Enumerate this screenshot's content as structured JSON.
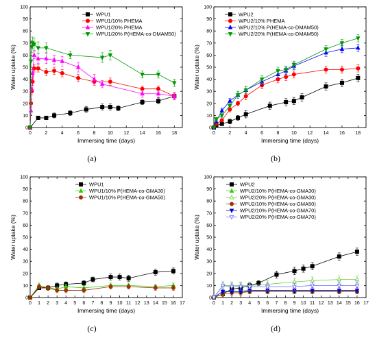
{
  "chart_data": [
    {
      "id": "a",
      "panel_label": "(a)",
      "type": "line",
      "xlabel": "Immersing time (days)",
      "ylabel": "Water uptake (%)",
      "xlim": [
        0,
        19
      ],
      "ylim": [
        0,
        100
      ],
      "xticks": [
        0,
        2,
        4,
        6,
        8,
        10,
        12,
        14,
        16,
        18
      ],
      "yticks": [
        0,
        10,
        20,
        30,
        40,
        50,
        60,
        70,
        80,
        90,
        100
      ],
      "legend_position": "top-right",
      "series": [
        {
          "name": "WPU1",
          "color": "#000000",
          "marker": "square",
          "x": [
            0,
            1,
            2,
            3,
            5,
            7,
            9,
            10,
            11,
            14,
            16,
            18
          ],
          "y": [
            0,
            8,
            8,
            10,
            12,
            15,
            17,
            17,
            16,
            21,
            22,
            26
          ],
          "err": [
            0,
            1.5,
            1.5,
            2,
            2,
            2.5,
            2.5,
            2.5,
            2,
            2,
            2.5,
            2.5
          ]
        },
        {
          "name": "WPU1/10% PHEMA",
          "color": "#ff0000",
          "marker": "circle",
          "x": [
            0,
            0.1,
            0.2,
            0.3,
            0.5,
            1,
            2,
            3,
            4,
            6,
            8,
            10,
            14,
            16,
            18
          ],
          "y": [
            0,
            20,
            30,
            38,
            49,
            49,
            46,
            47,
            45,
            41,
            38,
            38,
            32,
            32,
            26
          ],
          "err": [
            0,
            3,
            3,
            3,
            3,
            3,
            3,
            3,
            3,
            3,
            3,
            3,
            2.5,
            2.5,
            2.5
          ]
        },
        {
          "name": "WPU1/20% PHEMA",
          "color": "#ff00ff",
          "marker": "triangle-up",
          "x": [
            0,
            0.1,
            0.2,
            0.3,
            0.5,
            1,
            2,
            3,
            4,
            6,
            8,
            9,
            14,
            16,
            18
          ],
          "y": [
            0,
            14,
            32,
            45,
            60,
            57,
            57,
            56,
            55,
            50,
            40,
            36,
            28,
            28,
            26
          ],
          "err": [
            0,
            3,
            3,
            3,
            3,
            4,
            4,
            4,
            4,
            4,
            4,
            3,
            3,
            3,
            3
          ]
        },
        {
          "name": "WPU1/20% P(HEMA-co-DMAM50)",
          "color": "#009900",
          "marker": "triangle-down",
          "x": [
            0,
            0.1,
            0.2,
            0.3,
            0.5,
            1,
            2,
            5,
            9,
            10,
            14,
            16,
            18
          ],
          "y": [
            0,
            55,
            67,
            70,
            69,
            66,
            66,
            60,
            58,
            60,
            44,
            44,
            37
          ],
          "err": [
            0,
            5,
            5,
            5,
            5,
            5,
            4,
            3,
            4,
            4,
            3,
            3,
            3
          ]
        }
      ]
    },
    {
      "id": "b",
      "panel_label": "(b)",
      "type": "line",
      "xlabel": "Immersing time (days)",
      "ylabel": "Water uptake (%)",
      "xlim": [
        0,
        19
      ],
      "ylim": [
        0,
        100
      ],
      "xticks": [
        0,
        2,
        4,
        6,
        8,
        10,
        12,
        14,
        16,
        18
      ],
      "yticks": [
        0,
        10,
        20,
        30,
        40,
        50,
        60,
        70,
        80,
        90,
        100
      ],
      "legend_position": "top-left",
      "series": [
        {
          "name": "WPU2",
          "color": "#000000",
          "marker": "square",
          "x": [
            0,
            0.3,
            1,
            2,
            3,
            4,
            7,
            9,
            10,
            11,
            14,
            16,
            18
          ],
          "y": [
            0,
            2,
            3,
            5,
            8,
            11,
            18,
            21,
            22,
            25,
            34,
            37,
            41
          ],
          "err": [
            0,
            1,
            1,
            2,
            2,
            3,
            3,
            3,
            3,
            3,
            3,
            3,
            3
          ]
        },
        {
          "name": "WPU2/10% PHEMA",
          "color": "#ff0000",
          "marker": "circle",
          "x": [
            0,
            0.3,
            1,
            2,
            3,
            4,
            6,
            8,
            9,
            10,
            14,
            16,
            18
          ],
          "y": [
            0,
            3,
            6,
            15,
            20,
            26,
            35,
            40,
            42,
            44,
            48,
            48,
            49
          ],
          "err": [
            0,
            1,
            1,
            2,
            2,
            3,
            3,
            3,
            3,
            3,
            3,
            3,
            3
          ]
        },
        {
          "name": "WPU2/10% P(HEMA-co-DMAM50)",
          "color": "#0000ff",
          "marker": "triangle-up",
          "x": [
            0,
            0.3,
            1,
            2,
            3,
            4,
            6,
            8,
            9,
            10,
            14,
            16,
            18
          ],
          "y": [
            0,
            5,
            14,
            22,
            27,
            31,
            38,
            44,
            47,
            51,
            62,
            65,
            66
          ],
          "err": [
            0,
            1,
            2,
            2,
            3,
            3,
            3,
            3,
            3,
            3,
            3,
            3,
            3
          ]
        },
        {
          "name": "WPU2/20% P(HEMA-co-DMAM50)",
          "color": "#009900",
          "marker": "triangle-down",
          "x": [
            0,
            0.3,
            1,
            2,
            3,
            4,
            6,
            8,
            9,
            10,
            14,
            16,
            18
          ],
          "y": [
            0,
            7,
            10,
            18,
            27,
            31,
            40,
            47,
            48,
            52,
            65,
            70,
            74
          ],
          "err": [
            0,
            1,
            2,
            2,
            3,
            3,
            3,
            3,
            3,
            3,
            3,
            3,
            3
          ]
        }
      ]
    },
    {
      "id": "c",
      "panel_label": "(c)",
      "type": "line",
      "xlabel": "Immersing time (days)",
      "ylabel": "Water uptake (%)",
      "xlim": [
        0,
        17
      ],
      "ylim": [
        0,
        100
      ],
      "xticks": [
        0,
        1,
        2,
        3,
        4,
        5,
        6,
        7,
        8,
        9,
        10,
        11,
        12,
        13,
        14,
        15,
        16,
        17
      ],
      "yticks": [
        0,
        10,
        20,
        30,
        40,
        50,
        60,
        70,
        80,
        90,
        100
      ],
      "legend_position": "top-left",
      "series": [
        {
          "name": "WPU1",
          "color": "#000000",
          "marker": "square",
          "x": [
            0,
            1,
            2,
            3,
            4,
            6,
            7,
            9,
            10,
            11,
            14,
            16
          ],
          "y": [
            0,
            8,
            8,
            10,
            11,
            12,
            15,
            17,
            17,
            16,
            21,
            22
          ],
          "err": [
            0,
            1.5,
            1.5,
            2,
            2,
            2,
            2,
            2.5,
            2.5,
            2.5,
            2.5,
            2.5
          ]
        },
        {
          "name": "WPU1/10% P(HEMA-co-GMA30)",
          "color": "#33cc00",
          "marker": "triangle-up",
          "x": [
            0,
            1,
            2,
            3,
            4,
            6,
            9,
            11,
            14,
            16
          ],
          "y": [
            0,
            10,
            8,
            7,
            9,
            8,
            10,
            10,
            9,
            10
          ],
          "err": [
            0,
            2,
            2,
            2,
            2,
            2,
            2,
            2,
            2,
            2
          ]
        },
        {
          "name": "WPU1/10% P(HEMA-co-GMA50)",
          "color": "#993300",
          "marker": "circle",
          "x": [
            0,
            1,
            2,
            3,
            4,
            6,
            9,
            11,
            14,
            16
          ],
          "y": [
            0,
            9,
            8,
            6,
            6,
            6,
            9,
            9,
            8,
            8
          ],
          "err": [
            0,
            2,
            2,
            2,
            2,
            2,
            2,
            2,
            2,
            2
          ]
        }
      ]
    },
    {
      "id": "d",
      "panel_label": "(d)",
      "type": "line",
      "xlabel": "Immersing time (days)",
      "ylabel": "Water uptake (%)",
      "xlim": [
        0,
        17
      ],
      "ylim": [
        0,
        100
      ],
      "xticks": [
        0,
        1,
        2,
        3,
        4,
        5,
        6,
        7,
        8,
        9,
        10,
        11,
        12,
        13,
        14,
        15,
        16,
        17
      ],
      "yticks": [
        0,
        10,
        20,
        30,
        40,
        50,
        60,
        70,
        80,
        90,
        100
      ],
      "legend_position": "top-left",
      "series": [
        {
          "name": "WPU2",
          "color": "#000000",
          "marker": "square",
          "x": [
            0,
            1,
            2,
            3,
            4,
            5,
            7,
            9,
            10,
            11,
            14,
            16
          ],
          "y": [
            0,
            3,
            7,
            8,
            10,
            12,
            19,
            22,
            24,
            26,
            34,
            38
          ],
          "err": [
            0,
            1,
            1,
            2,
            2,
            2,
            3,
            3,
            3,
            3,
            3,
            3
          ]
        },
        {
          "name": "WPU2/10% P(HEMA-co-GMA30)",
          "color": "#33cc00",
          "marker": "triangle-up",
          "x": [
            0,
            1,
            2,
            3,
            4,
            6,
            9,
            11,
            14,
            16
          ],
          "y": [
            0,
            5,
            5,
            5,
            5,
            5,
            5,
            5,
            5,
            5
          ],
          "err": [
            0,
            2,
            2,
            2,
            2,
            2,
            2,
            2,
            2,
            2
          ]
        },
        {
          "name": "WPU2/20% P(HEMA-co-GMA30)",
          "color": "#66cc33",
          "marker": "triangle-up-open",
          "x": [
            0,
            1,
            2,
            3,
            4,
            6,
            9,
            11,
            14,
            16
          ],
          "y": [
            0,
            10,
            10,
            10,
            10,
            11,
            13,
            14,
            15,
            15
          ],
          "err": [
            0,
            3,
            3,
            3,
            3,
            3,
            3,
            3,
            3,
            3
          ]
        },
        {
          "name": "WPU2/10% P(HEMA-co-GMA50)",
          "color": "#993300",
          "marker": "circle",
          "x": [
            0,
            1,
            2,
            3,
            4,
            6,
            9,
            11,
            14,
            16
          ],
          "y": [
            0,
            3,
            4,
            4,
            5,
            5,
            5,
            5,
            5,
            5
          ],
          "err": [
            0,
            2,
            2,
            2,
            2,
            2,
            2,
            2,
            2,
            2
          ]
        },
        {
          "name": "WPU2/10% P(HEMA-co-GMA70)",
          "color": "#0000cc",
          "marker": "triangle-down",
          "x": [
            0,
            1,
            2,
            3,
            4,
            6,
            9,
            11,
            14,
            16
          ],
          "y": [
            0,
            5,
            5,
            5,
            6,
            6,
            6,
            6,
            6,
            6
          ],
          "err": [
            0,
            2,
            2,
            2,
            2,
            2,
            2,
            2,
            2,
            2
          ]
        },
        {
          "name": "WPU2/20% P(HEMA-co-GMA70)",
          "color": "#6666ff",
          "marker": "triangle-down-open",
          "x": [
            0,
            1,
            2,
            3,
            4,
            6,
            9,
            11,
            14,
            16
          ],
          "y": [
            0,
            10,
            9,
            9,
            9,
            9,
            9,
            10,
            10,
            10
          ],
          "err": [
            0,
            3,
            3,
            3,
            3,
            3,
            3,
            3,
            3,
            3
          ]
        }
      ]
    }
  ]
}
